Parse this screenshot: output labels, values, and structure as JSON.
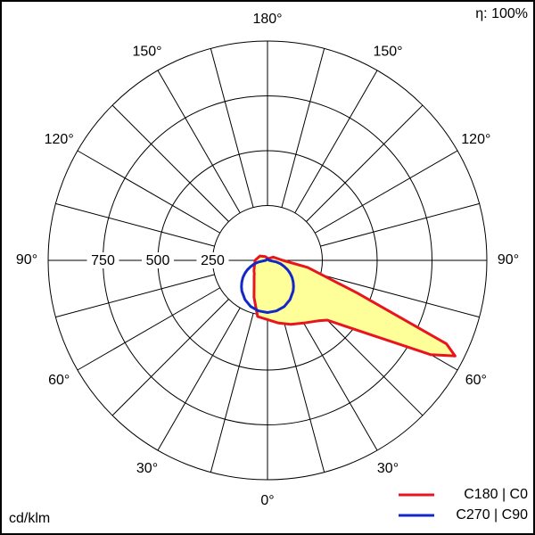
{
  "chart_data": {
    "type": "polar",
    "annotation": "η: 100%",
    "unit": "cd/klm",
    "rlim": [
      0,
      1000
    ],
    "rticks": [
      250,
      500,
      750
    ],
    "theta_grid_step": 15,
    "thetaticks": [
      {
        "value": -150,
        "label": "150°"
      },
      {
        "value": -120,
        "label": "120°"
      },
      {
        "value": -90,
        "label": "90°"
      },
      {
        "value": -60,
        "label": "60°"
      },
      {
        "value": -30,
        "label": "30°"
      },
      {
        "value": 0,
        "label": "0°"
      },
      {
        "value": 30,
        "label": "30°"
      },
      {
        "value": 60,
        "label": "60°"
      },
      {
        "value": 90,
        "label": "90°"
      },
      {
        "value": 120,
        "label": "120°"
      },
      {
        "value": 150,
        "label": "150°"
      },
      {
        "value": 180,
        "label": "180°"
      }
    ],
    "x": [
      -180,
      -150,
      -120,
      -90,
      -80,
      -75,
      -70,
      -65,
      -63,
      -60,
      -55,
      -50,
      -45,
      -40,
      -30,
      -20,
      -10,
      0,
      10,
      20,
      30,
      40,
      45,
      50,
      55,
      60,
      63,
      65,
      70,
      75,
      80,
      90,
      120,
      150,
      180
    ],
    "series": [
      {
        "name": "C180 | C0",
        "color": "#e8141e",
        "fill": "#ffff99",
        "values": [
          10,
          20,
          40,
          57,
          58,
          60,
          63,
          66,
          68,
          70,
          75,
          80,
          85,
          95,
          122,
          180,
          260,
          270,
          290,
          310,
          330,
          360,
          385,
          470,
          605,
          860,
          960,
          900,
          435,
          260,
          186,
          70,
          30,
          10,
          10
        ]
      },
      {
        "name": "C270 | C90",
        "color": "#1428c8",
        "values": [
          5,
          5,
          5,
          8,
          41,
          62,
          81,
          101,
          108,
          119,
          137,
          153,
          168,
          182,
          206,
          224,
          234,
          238,
          234,
          224,
          206,
          182,
          168,
          153,
          137,
          119,
          108,
          101,
          81,
          62,
          41,
          8,
          5,
          5,
          5
        ]
      }
    ]
  }
}
